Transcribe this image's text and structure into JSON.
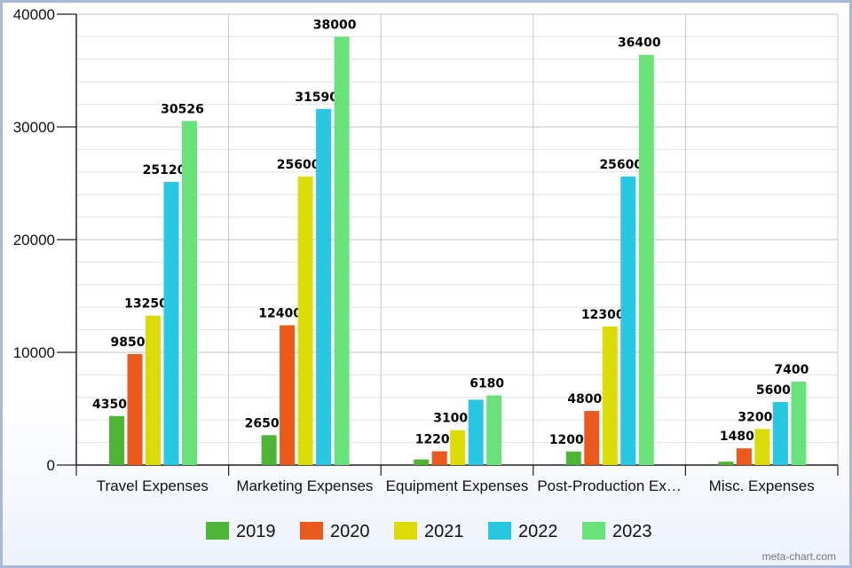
{
  "chart_data": {
    "type": "bar",
    "categories": [
      "Travel Expenses",
      "Marketing Expenses",
      "Equipment Expenses",
      "Post-Production Ex…",
      "Misc. Expenses"
    ],
    "series": [
      {
        "name": "2019",
        "color": "#4cb535",
        "values": [
          4350,
          2650,
          500,
          1200,
          300
        ]
      },
      {
        "name": "2020",
        "color": "#ea5a1c",
        "values": [
          9850,
          12400,
          1220,
          4800,
          1480
        ]
      },
      {
        "name": "2021",
        "color": "#dbdb07",
        "values": [
          13250,
          25600,
          3100,
          12300,
          3200
        ]
      },
      {
        "name": "2022",
        "color": "#28c8e4",
        "values": [
          25120,
          31590,
          5800,
          25600,
          5600
        ]
      },
      {
        "name": "2023",
        "color": "#6ae27a",
        "values": [
          30526,
          38000,
          6180,
          36400,
          7400
        ]
      }
    ],
    "data_labels": [
      [
        "4350",
        "9850",
        "13250",
        "25120",
        "30526"
      ],
      [
        "2650",
        "12400",
        "25600",
        "31590",
        "38000"
      ],
      [
        "",
        "1220",
        "3100",
        "",
        "6180"
      ],
      [
        "1200",
        "4800",
        "12300",
        "25600",
        "36400"
      ],
      [
        "",
        "1480",
        "3200",
        "5600",
        "7400"
      ]
    ],
    "ylim": [
      0,
      40000
    ],
    "yticks": [
      "0",
      "10000",
      "20000",
      "30000",
      "40000"
    ],
    "grid": true,
    "legend_position": "bottom"
  },
  "watermark": "meta-chart.com"
}
